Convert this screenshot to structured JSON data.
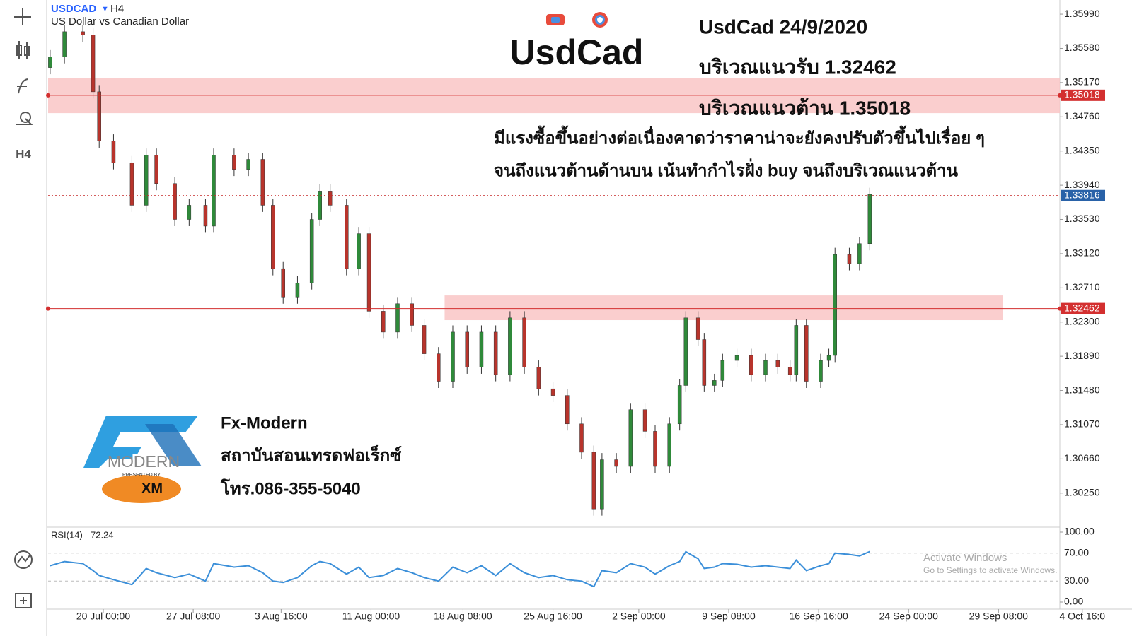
{
  "header": {
    "symbol": "USDCAD",
    "timeframe": "H4",
    "description": "US Dollar vs Canadian Dollar"
  },
  "toolbar": {
    "timeframe": "H4"
  },
  "annotations": {
    "big_title": "UsdCad",
    "date_line": "UsdCad 24/9/2020",
    "support_line": "บริเวณแนวรับ 1.32462",
    "resistance_line": "บริเวณแนวต้าน 1.35018",
    "comment_1": "มีแรงซื้อขึ้นอย่างต่อเนื่องคาดว่าราคาน่าจะยังคงปรับตัวขึ้นไปเรื่อย ๆ",
    "comment_2": "จนถึงแนวต้านด้านบน เน้นทำกำไรฝั่ง buy จนถึงบริเวณแนวต้าน"
  },
  "logo": {
    "mark": "FX",
    "name": "MODERN",
    "presented": "PRESENTED BY",
    "broker": "XM",
    "brand": "Fx-Modern",
    "school": "สถาบันสอนเทรดฟอเร็กซ์",
    "phone": "โทร.086-355-5040"
  },
  "watermark": {
    "title": "Activate Windows",
    "subtitle": "Go to Settings to activate Windows."
  },
  "chart_data": [
    {
      "type": "candlestick",
      "up_color": "#2f8a3a",
      "down_color": "#b8342c",
      "x": [
        -26,
        -19,
        -10,
        -5,
        -2,
        5,
        14,
        21,
        26,
        35,
        42,
        50,
        54,
        64,
        71,
        78,
        83,
        88,
        95,
        102,
        106,
        111,
        119,
        125,
        130,
        137,
        144,
        151,
        157,
        164,
        171,
        178,
        185,
        192,
        199,
        206,
        213,
        220,
        227,
        234,
        240,
        244,
        251,
        258,
        265,
        270,
        277,
        282,
        285,
        291,
        294,
        299,
        303,
        310,
        317,
        324,
        330,
        336,
        339,
        344,
        351,
        355,
        358,
        365,
        370,
        375
      ],
      "open": [
        1.3535,
        1.3548,
        1.3578,
        1.3574,
        1.3506,
        1.3447,
        1.3421,
        1.337,
        1.343,
        1.3396,
        1.3353,
        1.337,
        1.3345,
        1.343,
        1.3413,
        1.3425,
        1.337,
        1.3294,
        1.326,
        1.3277,
        1.3353,
        1.3387,
        1.337,
        1.3294,
        1.3336,
        1.3243,
        1.3218,
        1.3252,
        1.3226,
        1.3192,
        1.3159,
        1.3218,
        1.3176,
        1.3218,
        1.3167,
        1.3235,
        1.3176,
        1.315,
        1.3142,
        1.3108,
        1.3074,
        1.3006,
        1.3065,
        1.3057,
        1.3125,
        1.3099,
        1.3057,
        1.3108,
        1.3154,
        1.3235,
        1.3209,
        1.3154,
        1.316,
        1.3184,
        1.319,
        1.3167,
        1.3184,
        1.3176,
        1.3167,
        1.3226,
        1.3159,
        1.3184,
        1.319,
        1.3311,
        1.33,
        1.3324
      ],
      "high": [
        1.3556,
        1.3586,
        1.3586,
        1.3582,
        1.3514,
        1.3455,
        1.3429,
        1.3438,
        1.3438,
        1.3404,
        1.3378,
        1.3378,
        1.3438,
        1.3438,
        1.3433,
        1.3433,
        1.3378,
        1.3302,
        1.3285,
        1.3361,
        1.3395,
        1.3395,
        1.3378,
        1.3344,
        1.3344,
        1.3251,
        1.326,
        1.326,
        1.3234,
        1.32,
        1.3226,
        1.3226,
        1.3226,
        1.3226,
        1.3243,
        1.3243,
        1.3184,
        1.3158,
        1.315,
        1.3116,
        1.3082,
        1.3073,
        1.3073,
        1.3133,
        1.3133,
        1.3107,
        1.3116,
        1.3162,
        1.3243,
        1.3243,
        1.3217,
        1.3168,
        1.3192,
        1.3198,
        1.3198,
        1.3192,
        1.3192,
        1.3184,
        1.3234,
        1.3234,
        1.3192,
        1.3198,
        1.3319,
        1.3319,
        1.3332,
        1.3391
      ],
      "low": [
        1.3527,
        1.354,
        1.3566,
        1.3498,
        1.3439,
        1.3413,
        1.3362,
        1.3362,
        1.3388,
        1.3345,
        1.3345,
        1.3337,
        1.3337,
        1.3405,
        1.3405,
        1.3362,
        1.3286,
        1.3252,
        1.3252,
        1.3269,
        1.3345,
        1.3362,
        1.3286,
        1.3286,
        1.3235,
        1.321,
        1.321,
        1.3218,
        1.3184,
        1.3151,
        1.3151,
        1.3168,
        1.3168,
        1.3159,
        1.3159,
        1.3168,
        1.3142,
        1.3134,
        1.31,
        1.3066,
        1.2998,
        1.2998,
        1.3049,
        1.3049,
        1.3091,
        1.3049,
        1.3049,
        1.31,
        1.3146,
        1.3201,
        1.3146,
        1.3146,
        1.3152,
        1.3176,
        1.3159,
        1.3159,
        1.3168,
        1.3159,
        1.3159,
        1.3151,
        1.3151,
        1.3176,
        1.3182,
        1.3292,
        1.3292,
        1.3316
      ],
      "close": [
        1.3548,
        1.3578,
        1.3574,
        1.3506,
        1.3447,
        1.3421,
        1.337,
        1.343,
        1.3396,
        1.3353,
        1.337,
        1.3345,
        1.343,
        1.3413,
        1.3425,
        1.337,
        1.3294,
        1.326,
        1.3277,
        1.3353,
        1.3387,
        1.337,
        1.3294,
        1.3336,
        1.3243,
        1.3218,
        1.3252,
        1.3226,
        1.3192,
        1.3159,
        1.3218,
        1.3176,
        1.3218,
        1.3167,
        1.3235,
        1.3176,
        1.315,
        1.3142,
        1.3108,
        1.3074,
        1.3006,
        1.3065,
        1.3057,
        1.3125,
        1.3099,
        1.3057,
        1.3108,
        1.3154,
        1.3235,
        1.3209,
        1.3154,
        1.316,
        1.3184,
        1.319,
        1.3167,
        1.3184,
        1.3176,
        1.3167,
        1.3226,
        1.3159,
        1.3184,
        1.319,
        1.3311,
        1.33,
        1.3324,
        1.3383
      ],
      "xlim": [
        -27,
        468
      ],
      "xticks": [
        {
          "value": 0,
          "label": "20 Jul 00:00"
        },
        {
          "value": 44,
          "label": "27 Jul 08:00"
        },
        {
          "value": 87,
          "label": "3 Aug 16:00"
        },
        {
          "value": 131,
          "label": "11 Aug 00:00"
        },
        {
          "value": 176,
          "label": "18 Aug 08:00"
        },
        {
          "value": 220,
          "label": "25 Aug 16:00"
        },
        {
          "value": 262,
          "label": "2 Sep 00:00"
        },
        {
          "value": 306,
          "label": "9 Sep 08:00"
        },
        {
          "value": 350,
          "label": "16 Sep 16:00"
        },
        {
          "value": 394,
          "label": "24 Sep 00:00"
        },
        {
          "value": 438,
          "label": "29 Sep 08:00"
        },
        {
          "value": 479,
          "label": "4 Oct 16:0"
        }
      ],
      "ylim": [
        1.2985,
        1.3616
      ],
      "yticks": [
        {
          "value": 1.3599,
          "label": "1.35990"
        },
        {
          "value": 1.3558,
          "label": "1.35580"
        },
        {
          "value": 1.3517,
          "label": "1.35170"
        },
        {
          "value": 1.3476,
          "label": "1.34760"
        },
        {
          "value": 1.3435,
          "label": "1.34350"
        },
        {
          "value": 1.3394,
          "label": "1.33940"
        },
        {
          "value": 1.3353,
          "label": "1.33530"
        },
        {
          "value": 1.3312,
          "label": "1.33120"
        },
        {
          "value": 1.3271,
          "label": "1.32710"
        },
        {
          "value": 1.323,
          "label": "1.32300"
        },
        {
          "value": 1.3189,
          "label": "1.31890"
        },
        {
          "value": 1.3148,
          "label": "1.31480"
        },
        {
          "value": 1.3107,
          "label": "1.31070"
        },
        {
          "value": 1.3066,
          "label": "1.30660"
        },
        {
          "value": 1.3025,
          "label": "1.30250"
        }
      ],
      "levels": [
        {
          "value": 1.35018,
          "color": "#d32f2f",
          "style": "solid"
        },
        {
          "value": 1.32462,
          "color": "#d32f2f",
          "style": "solid"
        },
        {
          "value": 1.33816,
          "color": "#c62828",
          "tag_color": "#2962a8",
          "style": "dotted"
        }
      ],
      "zones": [
        {
          "from": 1.35228,
          "to": 1.34804,
          "x_from": -27,
          "x_to": 468,
          "color": "#f9c5c5"
        },
        {
          "from": 1.32619,
          "to": 1.32323,
          "x_from": 167,
          "x_to": 440,
          "color": "#f9c5c5"
        }
      ]
    },
    {
      "type": "line",
      "title": "RSI(14)",
      "color": "#3b8fd9",
      "x": [
        -26,
        -19,
        -10,
        -5,
        -2,
        5,
        14,
        21,
        26,
        35,
        42,
        50,
        54,
        64,
        71,
        78,
        83,
        88,
        95,
        102,
        106,
        111,
        119,
        125,
        130,
        137,
        144,
        151,
        157,
        164,
        171,
        178,
        185,
        192,
        199,
        206,
        213,
        220,
        227,
        234,
        240,
        244,
        251,
        258,
        265,
        270,
        277,
        282,
        285,
        291,
        294,
        299,
        303,
        310,
        317,
        324,
        330,
        336,
        339,
        344,
        351,
        355,
        358,
        365,
        370,
        375
      ],
      "values": [
        52,
        58,
        55,
        45,
        38,
        32,
        25,
        48,
        42,
        35,
        40,
        30,
        55,
        50,
        52,
        42,
        30,
        28,
        35,
        52,
        58,
        55,
        40,
        50,
        35,
        38,
        48,
        42,
        35,
        30,
        50,
        42,
        52,
        38,
        55,
        42,
        35,
        38,
        32,
        30,
        22,
        45,
        42,
        55,
        50,
        40,
        52,
        58,
        72,
        62,
        48,
        50,
        55,
        54,
        50,
        52,
        50,
        48,
        60,
        45,
        52,
        55,
        70,
        68,
        66,
        72.24
      ],
      "xlim": [
        -27,
        468
      ],
      "ylim": [
        0,
        100
      ],
      "yticks": [
        {
          "value": 0,
          "label": "0.00"
        },
        {
          "value": 30,
          "label": "30.00"
        },
        {
          "value": 70,
          "label": "70.00"
        },
        {
          "value": 100,
          "label": "100.00"
        }
      ]
    }
  ]
}
